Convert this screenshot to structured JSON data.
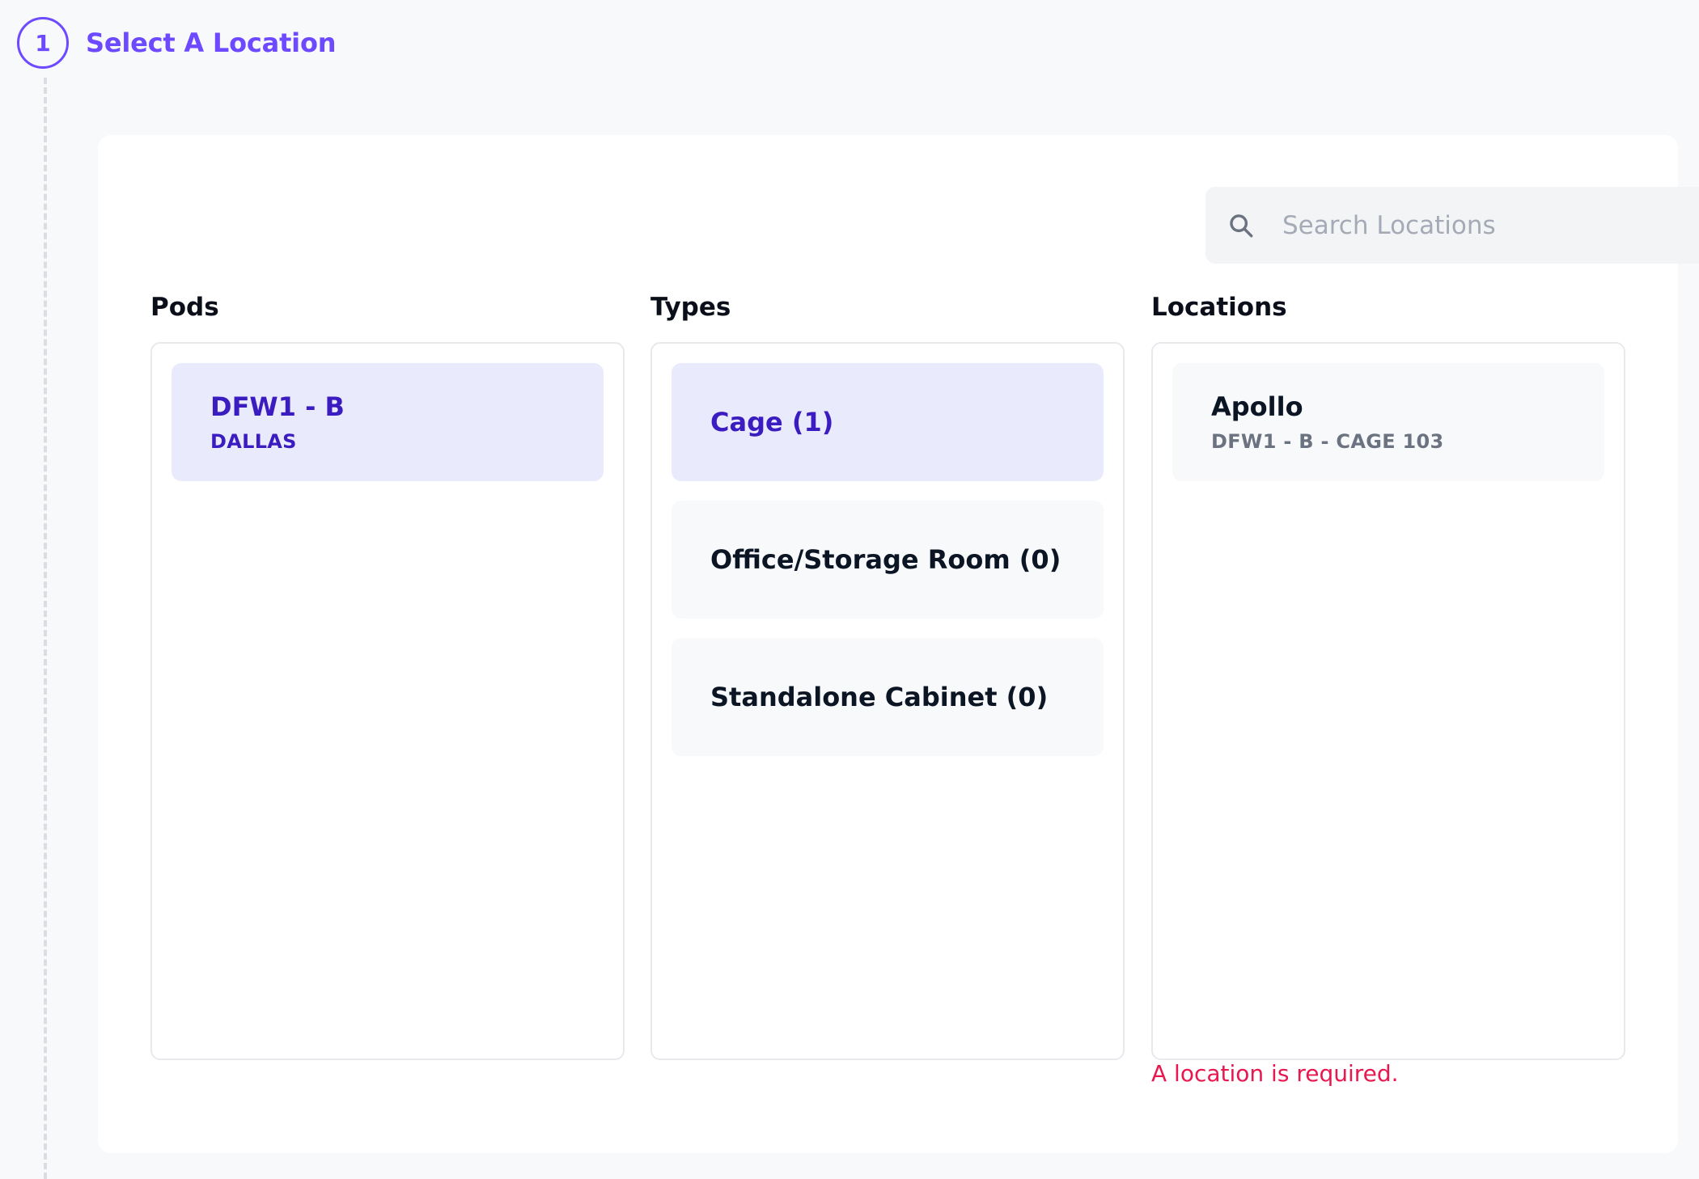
{
  "step": {
    "number": "1",
    "title": "Select A Location",
    "accent": "#6d4aff"
  },
  "search": {
    "placeholder": "Search Locations",
    "value": "",
    "icon": "search-icon"
  },
  "pods": {
    "heading": "Pods",
    "items": [
      {
        "title": "DFW1 - B",
        "subtitle": "DALLAS",
        "selected": true
      }
    ]
  },
  "types": {
    "heading": "Types",
    "items": [
      {
        "title": "Cage (1)",
        "selected": true
      },
      {
        "title": "Office/Storage Room (0)",
        "selected": false
      },
      {
        "title": "Standalone Cabinet (0)",
        "selected": false
      }
    ]
  },
  "locations": {
    "heading": "Locations",
    "items": [
      {
        "title": "Apollo",
        "subtitle": "DFW1 - B - CAGE 103",
        "selected": false
      }
    ],
    "error": "A location is required.",
    "error_color": "#e8174f"
  }
}
